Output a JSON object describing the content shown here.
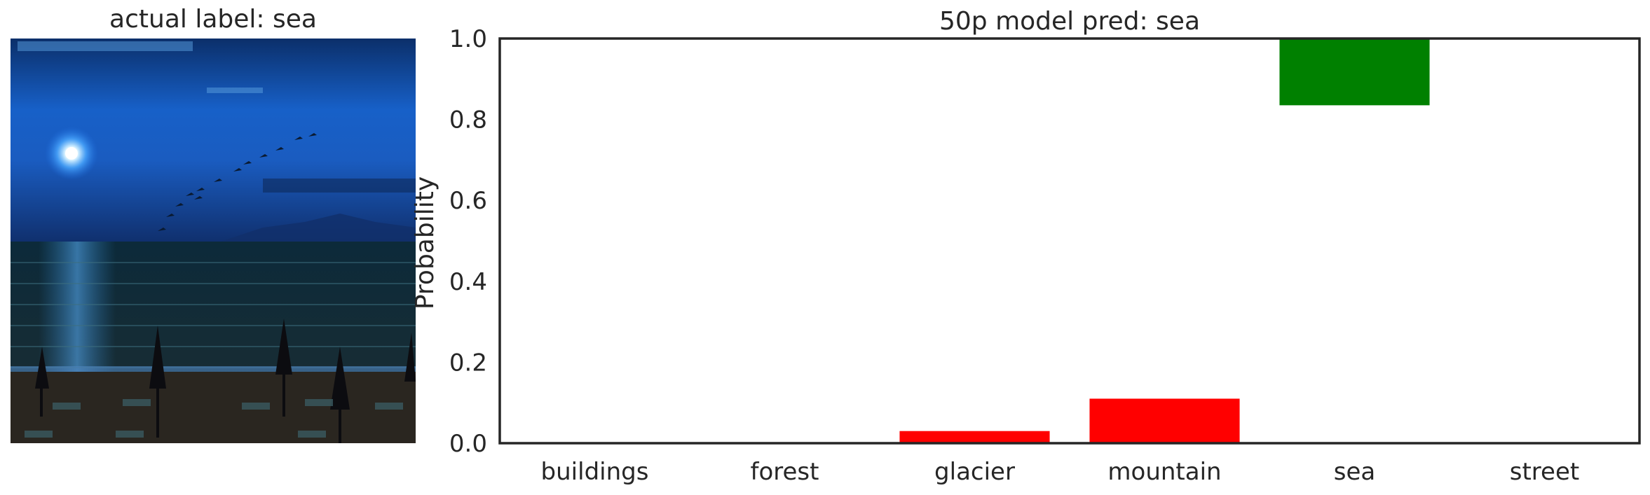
{
  "image_panel": {
    "title": "actual label: sea",
    "photo_icon": "night-sea-beach-photo"
  },
  "chart_data": {
    "type": "bar",
    "title": "50p model pred: sea",
    "xlabel": "",
    "ylabel": "Probability",
    "categories": [
      "buildings",
      "forest",
      "glacier",
      "mountain",
      "sea",
      "street"
    ],
    "values": [
      0.0,
      0.0,
      0.03,
      0.11,
      0.165,
      0.0
    ],
    "bar_bottoms": [
      0.0,
      0.0,
      0.0,
      0.0,
      0.835,
      0.0
    ],
    "colors": [
      "#ff0000",
      "#ff0000",
      "#ff0000",
      "#ff0000",
      "#008000",
      "#ff0000"
    ],
    "ylim": [
      0,
      1.0
    ],
    "yticks": [
      "0.0",
      "0.2",
      "0.4",
      "0.6",
      "0.8",
      "1.0"
    ],
    "grid": false,
    "legend": "none"
  }
}
